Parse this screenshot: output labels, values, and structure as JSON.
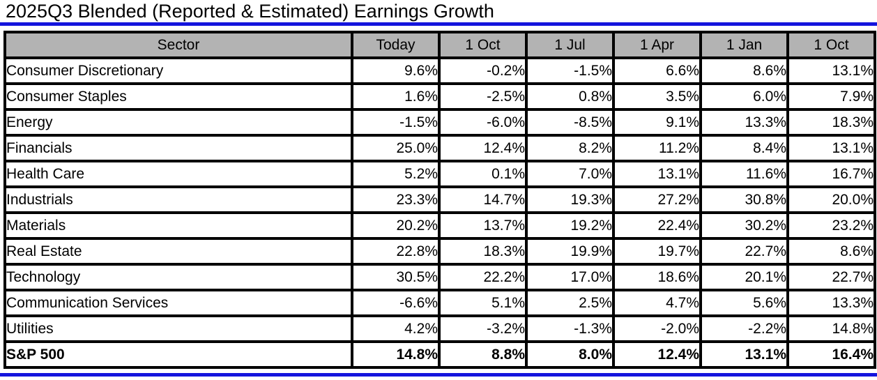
{
  "title": "2025Q3 Blended (Reported & Estimated) Earnings Growth",
  "colors": {
    "accent_blue": "#1414dd",
    "header_bg": "#b3b3b3",
    "border": "#000000",
    "text": "#000000"
  },
  "chart_data": {
    "type": "table",
    "title": "2025Q3 Blended (Reported & Estimated) Earnings Growth",
    "columns": [
      "Sector",
      "Today",
      "1 Oct",
      "1 Jul",
      "1 Apr",
      "1 Jan",
      "1 Oct"
    ],
    "rows": [
      {
        "sector": "Consumer Discretionary",
        "values": [
          "9.6%",
          "-0.2%",
          "-1.5%",
          "6.6%",
          "8.6%",
          "13.1%"
        ],
        "bold": false
      },
      {
        "sector": "Consumer Staples",
        "values": [
          "1.6%",
          "-2.5%",
          "0.8%",
          "3.5%",
          "6.0%",
          "7.9%"
        ],
        "bold": false
      },
      {
        "sector": "Energy",
        "values": [
          "-1.5%",
          "-6.0%",
          "-8.5%",
          "9.1%",
          "13.3%",
          "18.3%"
        ],
        "bold": false
      },
      {
        "sector": "Financials",
        "values": [
          "25.0%",
          "12.4%",
          "8.2%",
          "11.2%",
          "8.4%",
          "13.1%"
        ],
        "bold": false
      },
      {
        "sector": "Health Care",
        "values": [
          "5.2%",
          "0.1%",
          "7.0%",
          "13.1%",
          "11.6%",
          "16.7%"
        ],
        "bold": false
      },
      {
        "sector": "Industrials",
        "values": [
          "23.3%",
          "14.7%",
          "19.3%",
          "27.2%",
          "30.8%",
          "20.0%"
        ],
        "bold": false
      },
      {
        "sector": "Materials",
        "values": [
          "20.2%",
          "13.7%",
          "19.2%",
          "22.4%",
          "30.2%",
          "23.2%"
        ],
        "bold": false
      },
      {
        "sector": "Real Estate",
        "values": [
          "22.8%",
          "18.3%",
          "19.9%",
          "19.7%",
          "22.7%",
          "8.6%"
        ],
        "bold": false
      },
      {
        "sector": "Technology",
        "values": [
          "30.5%",
          "22.2%",
          "17.0%",
          "18.6%",
          "20.1%",
          "22.7%"
        ],
        "bold": false
      },
      {
        "sector": "Communication Services",
        "values": [
          "-6.6%",
          "5.1%",
          "2.5%",
          "4.7%",
          "5.6%",
          "13.3%"
        ],
        "bold": false
      },
      {
        "sector": "Utilities",
        "values": [
          "4.2%",
          "-3.2%",
          "-1.3%",
          "-2.0%",
          "-2.2%",
          "14.8%"
        ],
        "bold": false
      },
      {
        "sector": "S&P 500",
        "values": [
          "14.8%",
          "8.8%",
          "8.0%",
          "12.4%",
          "13.1%",
          "16.4%"
        ],
        "bold": true
      }
    ]
  }
}
